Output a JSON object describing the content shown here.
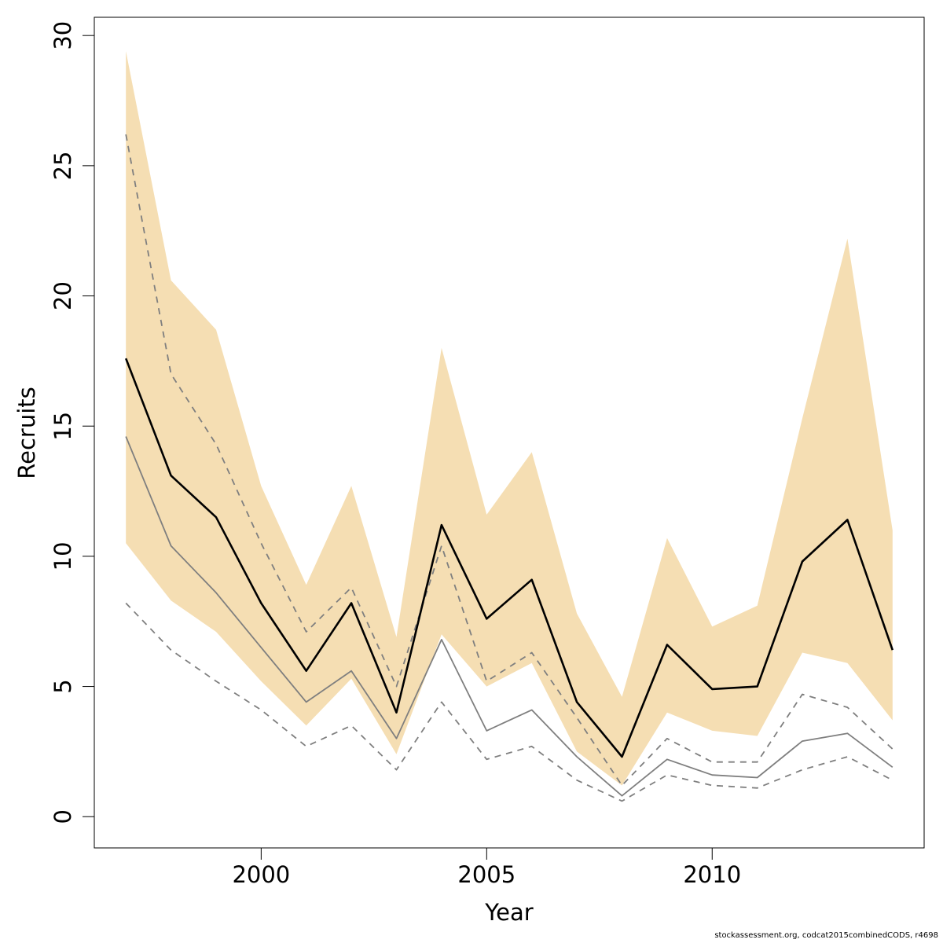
{
  "chart_data": {
    "type": "line",
    "xlabel": "Year",
    "ylabel": "Recruits",
    "xlim": [
      1996.3,
      2014.7
    ],
    "ylim": [
      -1.2,
      30.7
    ],
    "x_ticks": [
      2000,
      2005,
      2010
    ],
    "y_ticks": [
      0,
      5,
      10,
      15,
      20,
      25,
      30
    ],
    "x": [
      1997,
      1998,
      1999,
      2000,
      2001,
      2002,
      2003,
      2004,
      2005,
      2006,
      2007,
      2008,
      2009,
      2010,
      2011,
      2012,
      2013,
      2014
    ],
    "band": {
      "lower": [
        10.5,
        8.3,
        7.1,
        5.2,
        3.5,
        5.3,
        2.4,
        7.0,
        5.0,
        5.9,
        2.5,
        1.2,
        4.0,
        3.3,
        3.1,
        6.3,
        5.9,
        3.7
      ],
      "upper": [
        29.4,
        20.6,
        18.7,
        12.7,
        8.9,
        12.7,
        6.9,
        18.0,
        11.6,
        14.0,
        7.8,
        4.6,
        10.7,
        7.3,
        8.1,
        15.3,
        22.2,
        11.0
      ],
      "color": "#f5deb3"
    },
    "series": [
      {
        "values": [
          17.6,
          13.1,
          11.5,
          8.2,
          5.6,
          8.2,
          4.0,
          11.2,
          7.6,
          9.1,
          4.4,
          2.3,
          6.6,
          4.9,
          5.0,
          9.8,
          11.4,
          6.4
        ],
        "color": "#000000",
        "style": "solid",
        "width": 2.6
      },
      {
        "values": [
          14.6,
          10.4,
          8.6,
          6.5,
          4.4,
          5.6,
          3.0,
          6.8,
          3.3,
          4.1,
          2.3,
          0.8,
          2.2,
          1.6,
          1.5,
          2.9,
          3.2,
          1.9
        ],
        "color": "#7f7f7f",
        "style": "solid",
        "width": 1.8
      },
      {
        "values": [
          26.2,
          17.0,
          14.3,
          10.5,
          7.1,
          8.8,
          5.0,
          10.4,
          5.2,
          6.3,
          3.8,
          1.2,
          3.0,
          2.1,
          2.1,
          4.7,
          4.2,
          2.6
        ],
        "color": "#7f7f7f",
        "style": "dashed",
        "width": 1.8
      },
      {
        "values": [
          8.2,
          6.4,
          5.2,
          4.1,
          2.7,
          3.5,
          1.8,
          4.4,
          2.2,
          2.7,
          1.4,
          0.6,
          1.6,
          1.2,
          1.1,
          1.8,
          2.3,
          1.4
        ],
        "color": "#7f7f7f",
        "style": "dashed",
        "width": 1.8
      }
    ]
  },
  "footnote": "stockassessment.org, codcat2015combinedCODS, r4698"
}
